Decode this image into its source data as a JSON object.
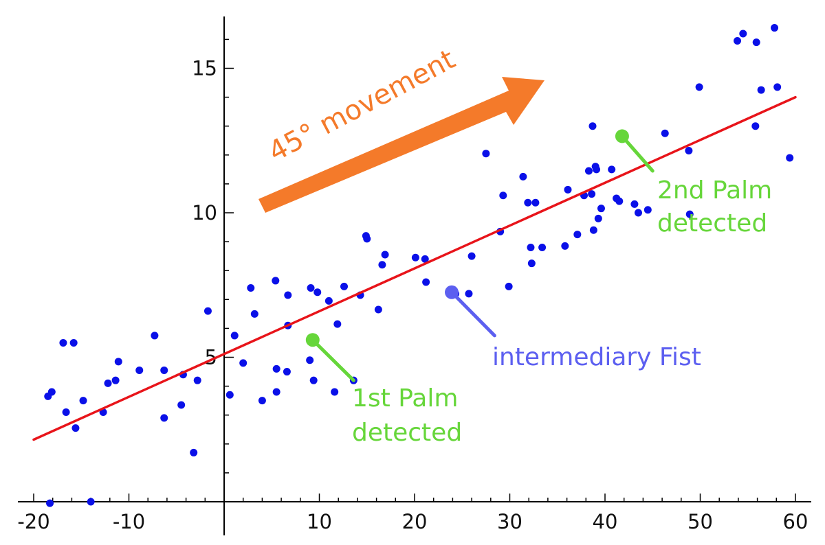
{
  "chart_data": {
    "type": "scatter",
    "x_ticks": [
      "-20",
      "-10",
      "10",
      "20",
      "30",
      "40",
      "50",
      "60"
    ],
    "y_ticks": [
      "5",
      "10",
      "15"
    ],
    "xlim": [
      -21.5,
      61.5
    ],
    "ylim": [
      0.3,
      16.8
    ],
    "points": [
      [
        -18.3,
        -0.05
      ],
      [
        -18.5,
        3.65
      ],
      [
        -18.1,
        3.8
      ],
      [
        -16.9,
        5.5
      ],
      [
        -16.6,
        3.1
      ],
      [
        -15.8,
        5.5
      ],
      [
        -15.6,
        2.55
      ],
      [
        -14.8,
        3.5
      ],
      [
        -14.0,
        0.0
      ],
      [
        -12.7,
        3.1
      ],
      [
        -12.2,
        4.1
      ],
      [
        -11.4,
        4.2
      ],
      [
        -11.1,
        4.85
      ],
      [
        -8.9,
        4.55
      ],
      [
        -7.3,
        5.75
      ],
      [
        -6.3,
        4.55
      ],
      [
        -6.3,
        2.9
      ],
      [
        -4.5,
        3.35
      ],
      [
        -4.3,
        4.4
      ],
      [
        -3.2,
        1.7
      ],
      [
        -2.8,
        4.2
      ],
      [
        -1.7,
        6.6
      ],
      [
        0.6,
        3.7
      ],
      [
        1.1,
        5.75
      ],
      [
        2.0,
        4.8
      ],
      [
        2.8,
        7.4
      ],
      [
        3.2,
        6.5
      ],
      [
        4.0,
        3.5
      ],
      [
        5.5,
        4.6
      ],
      [
        5.4,
        7.65
      ],
      [
        5.5,
        3.8
      ],
      [
        6.6,
        4.5
      ],
      [
        6.7,
        7.15
      ],
      [
        6.7,
        6.1
      ],
      [
        9.0,
        4.9
      ],
      [
        9.1,
        7.4
      ],
      [
        9.4,
        4.2
      ],
      [
        9.8,
        7.25
      ],
      [
        11.0,
        6.95
      ],
      [
        11.6,
        3.8
      ],
      [
        11.9,
        6.15
      ],
      [
        12.6,
        7.45
      ],
      [
        13.6,
        4.2
      ],
      [
        14.3,
        7.15
      ],
      [
        14.9,
        9.2
      ],
      [
        15.0,
        9.1
      ],
      [
        16.2,
        6.65
      ],
      [
        16.6,
        8.2
      ],
      [
        16.9,
        8.55
      ],
      [
        20.1,
        8.45
      ],
      [
        21.1,
        8.4
      ],
      [
        21.2,
        7.6
      ],
      [
        24.3,
        7.2
      ],
      [
        25.7,
        7.2
      ],
      [
        26.0,
        8.5
      ],
      [
        27.5,
        12.05
      ],
      [
        29.0,
        9.35
      ],
      [
        29.3,
        10.6
      ],
      [
        29.9,
        7.45
      ],
      [
        31.4,
        11.25
      ],
      [
        31.9,
        10.35
      ],
      [
        32.2,
        8.8
      ],
      [
        32.3,
        8.25
      ],
      [
        32.7,
        10.35
      ],
      [
        33.4,
        8.8
      ],
      [
        35.8,
        8.85
      ],
      [
        36.1,
        10.8
      ],
      [
        37.1,
        9.25
      ],
      [
        37.8,
        10.6
      ],
      [
        38.3,
        11.45
      ],
      [
        38.6,
        10.65
      ],
      [
        38.7,
        13.0
      ],
      [
        38.8,
        9.4
      ],
      [
        39.0,
        11.6
      ],
      [
        39.1,
        11.5
      ],
      [
        39.3,
        9.8
      ],
      [
        39.6,
        10.15
      ],
      [
        40.7,
        11.5
      ],
      [
        41.2,
        10.5
      ],
      [
        41.5,
        10.4
      ],
      [
        43.1,
        10.3
      ],
      [
        43.5,
        10.0
      ],
      [
        44.5,
        10.1
      ],
      [
        46.3,
        12.75
      ],
      [
        48.8,
        12.15
      ],
      [
        48.9,
        9.95
      ],
      [
        49.9,
        14.35
      ],
      [
        53.9,
        15.95
      ],
      [
        54.5,
        16.2
      ],
      [
        55.9,
        15.9
      ],
      [
        55.8,
        13.0
      ],
      [
        56.4,
        14.25
      ],
      [
        57.8,
        16.4
      ],
      [
        58.1,
        14.35
      ],
      [
        59.4,
        11.9
      ]
    ],
    "regression_line": {
      "from": [
        -20,
        2.15
      ],
      "to": [
        60,
        14.0
      ]
    },
    "colors": {
      "points": "#0a10e8",
      "line": "#e8141a",
      "arrow": "#f47a2a",
      "palm": "#66d63a",
      "fist": "#5c5ff0"
    },
    "annotations": [
      {
        "id": "palm-1",
        "text": [
          "1st Palm",
          "detected"
        ],
        "marker": [
          9.3,
          5.6
        ],
        "pointer": [
          13.6,
          4.2
        ],
        "color": "palm"
      },
      {
        "id": "palm-2",
        "text": [
          "2nd Palm",
          "detected"
        ],
        "marker": [
          41.8,
          12.65
        ],
        "pointer": [
          45.0,
          11.45
        ],
        "color": "palm"
      },
      {
        "id": "fist",
        "text": [
          "intermediary Fist"
        ],
        "marker": [
          23.9,
          7.25
        ],
        "pointer": [
          28.4,
          5.75
        ],
        "color": "fist"
      }
    ],
    "movement_label": "45° movement",
    "grid": false,
    "legend": "none"
  }
}
